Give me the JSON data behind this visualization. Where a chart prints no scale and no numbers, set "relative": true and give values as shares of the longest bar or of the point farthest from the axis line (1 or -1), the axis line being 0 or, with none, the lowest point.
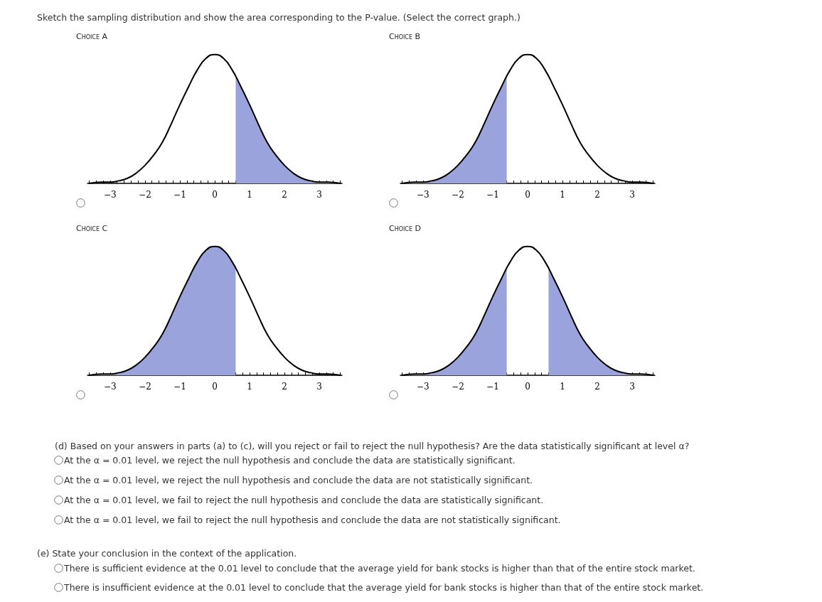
{
  "chart_data": [
    {
      "type": "line",
      "title": "Choice A",
      "relative": true,
      "marker": "none",
      "grid": false,
      "xlim": [
        -3.65,
        3.65
      ],
      "xticks": [
        {
          "value": -3.6,
          "label": null
        },
        {
          "value": -3.4,
          "label": null
        },
        {
          "value": -3.2,
          "label": null
        },
        {
          "value": -3,
          "label": "−3"
        },
        {
          "value": -2.8,
          "label": null
        },
        {
          "value": -2.6,
          "label": null
        },
        {
          "value": -2.4,
          "label": null
        },
        {
          "value": -2.2,
          "label": null
        },
        {
          "value": -2,
          "label": "−2"
        },
        {
          "value": -1.8,
          "label": null
        },
        {
          "value": -1.6,
          "label": null
        },
        {
          "value": -1.4,
          "label": null
        },
        {
          "value": -1.2,
          "label": null
        },
        {
          "value": -1,
          "label": "−1"
        },
        {
          "value": -0.8,
          "label": null
        },
        {
          "value": -0.6,
          "label": null
        },
        {
          "value": -0.4,
          "label": null
        },
        {
          "value": -0.2,
          "label": null
        },
        0,
        {
          "value": 0.2,
          "label": null
        },
        {
          "value": 0.4,
          "label": null
        },
        {
          "value": 0.6,
          "label": null
        },
        {
          "value": 0.8,
          "label": null
        },
        1,
        {
          "value": 1.2,
          "label": null
        },
        {
          "value": 1.4,
          "label": null
        },
        {
          "value": 1.6,
          "label": null
        },
        {
          "value": 1.8,
          "label": null
        },
        2,
        {
          "value": 2.2,
          "label": null
        },
        {
          "value": 2.4,
          "label": null
        },
        {
          "value": 2.6,
          "label": null
        },
        {
          "value": 2.8,
          "label": null
        },
        3,
        {
          "value": 3.2,
          "label": null
        },
        {
          "value": 3.4,
          "label": null
        },
        {
          "value": 3.6,
          "label": null
        }
      ],
      "series": [
        {
          "type": "area",
          "color": "#9aa3db",
          "x": [
            0.6,
            0.75,
            1,
            1.25,
            1.5,
            1.75,
            2,
            2.25,
            2.5,
            2.75,
            3,
            3.25,
            3.6
          ],
          "values": [
            0.84,
            0.75,
            0.61,
            0.46,
            0.32,
            0.22,
            0.14,
            0.08,
            0.04,
            0.02,
            0.01,
            0.01,
            0
          ]
        },
        {
          "type": "line",
          "color": "#000000",
          "x": [
            -3.6,
            -3.25,
            -3,
            -2.75,
            -2.5,
            -2.25,
            -2,
            -1.75,
            -1.5,
            -1.25,
            -1,
            -0.75,
            -0.5,
            -0.25,
            0,
            0.25,
            0.5,
            0.75,
            1,
            1.25,
            1.5,
            1.75,
            2,
            2.25,
            2.5,
            2.75,
            3,
            3.25,
            3.6
          ],
          "values": [
            0,
            0.01,
            0.01,
            0.02,
            0.04,
            0.08,
            0.14,
            0.22,
            0.32,
            0.46,
            0.61,
            0.75,
            0.88,
            0.97,
            1,
            0.97,
            0.88,
            0.75,
            0.61,
            0.46,
            0.32,
            0.22,
            0.14,
            0.08,
            0.04,
            0.02,
            0.01,
            0.01,
            0
          ]
        }
      ],
      "annotations": [
        "Sketch the sampling distribution and show the area corresponding to the P-value. (Select the correct graph.)"
      ]
    },
    {
      "type": "line",
      "title": "Choice B",
      "relative": true,
      "marker": "none",
      "grid": false,
      "xlim": [
        -3.65,
        3.65
      ],
      "xticks": [
        {
          "value": -3.6,
          "label": null
        },
        {
          "value": -3.4,
          "label": null
        },
        {
          "value": -3.2,
          "label": null
        },
        {
          "value": -3,
          "label": "−3"
        },
        {
          "value": -2.8,
          "label": null
        },
        {
          "value": -2.6,
          "label": null
        },
        {
          "value": -2.4,
          "label": null
        },
        {
          "value": -2.2,
          "label": null
        },
        {
          "value": -2,
          "label": "−2"
        },
        {
          "value": -1.8,
          "label": null
        },
        {
          "value": -1.6,
          "label": null
        },
        {
          "value": -1.4,
          "label": null
        },
        {
          "value": -1.2,
          "label": null
        },
        {
          "value": -1,
          "label": "−1"
        },
        {
          "value": -0.8,
          "label": null
        },
        {
          "value": -0.6,
          "label": null
        },
        {
          "value": -0.4,
          "label": null
        },
        {
          "value": -0.2,
          "label": null
        },
        0,
        {
          "value": 0.2,
          "label": null
        },
        {
          "value": 0.4,
          "label": null
        },
        {
          "value": 0.6,
          "label": null
        },
        {
          "value": 0.8,
          "label": null
        },
        1,
        {
          "value": 1.2,
          "label": null
        },
        {
          "value": 1.4,
          "label": null
        },
        {
          "value": 1.6,
          "label": null
        },
        {
          "value": 1.8,
          "label": null
        },
        2,
        {
          "value": 2.2,
          "label": null
        },
        {
          "value": 2.4,
          "label": null
        },
        {
          "value": 2.6,
          "label": null
        },
        {
          "value": 2.8,
          "label": null
        },
        3,
        {
          "value": 3.2,
          "label": null
        },
        {
          "value": 3.4,
          "label": null
        },
        {
          "value": 3.6,
          "label": null
        }
      ],
      "series": [
        {
          "type": "area",
          "color": "#9aa3db",
          "x": [
            -3.6,
            -3.25,
            -3,
            -2.75,
            -2.5,
            -2.25,
            -2,
            -1.75,
            -1.5,
            -1.25,
            -1,
            -0.75,
            -0.6
          ],
          "values": [
            0,
            0.01,
            0.01,
            0.02,
            0.04,
            0.08,
            0.14,
            0.22,
            0.32,
            0.46,
            0.61,
            0.75,
            0.84
          ]
        },
        {
          "type": "line",
          "color": "#000000",
          "x": [
            -3.6,
            -3.25,
            -3,
            -2.75,
            -2.5,
            -2.25,
            -2,
            -1.75,
            -1.5,
            -1.25,
            -1,
            -0.75,
            -0.5,
            -0.25,
            0,
            0.25,
            0.5,
            0.75,
            1,
            1.25,
            1.5,
            1.75,
            2,
            2.25,
            2.5,
            2.75,
            3,
            3.25,
            3.6
          ],
          "values": [
            0,
            0.01,
            0.01,
            0.02,
            0.04,
            0.08,
            0.14,
            0.22,
            0.32,
            0.46,
            0.61,
            0.75,
            0.88,
            0.97,
            1,
            0.97,
            0.88,
            0.75,
            0.61,
            0.46,
            0.32,
            0.22,
            0.14,
            0.08,
            0.04,
            0.02,
            0.01,
            0.01,
            0
          ]
        }
      ]
    },
    {
      "type": "line",
      "title": "Choice C",
      "relative": true,
      "marker": "none",
      "grid": false,
      "xlim": [
        -3.65,
        3.65
      ],
      "xticks": [
        {
          "value": -3.6,
          "label": null
        },
        {
          "value": -3.4,
          "label": null
        },
        {
          "value": -3.2,
          "label": null
        },
        {
          "value": -3,
          "label": "−3"
        },
        {
          "value": -2.8,
          "label": null
        },
        {
          "value": -2.6,
          "label": null
        },
        {
          "value": -2.4,
          "label": null
        },
        {
          "value": -2.2,
          "label": null
        },
        {
          "value": -2,
          "label": "−2"
        },
        {
          "value": -1.8,
          "label": null
        },
        {
          "value": -1.6,
          "label": null
        },
        {
          "value": -1.4,
          "label": null
        },
        {
          "value": -1.2,
          "label": null
        },
        {
          "value": -1,
          "label": "−1"
        },
        {
          "value": -0.8,
          "label": null
        },
        {
          "value": -0.6,
          "label": null
        },
        {
          "value": -0.4,
          "label": null
        },
        {
          "value": -0.2,
          "label": null
        },
        0,
        {
          "value": 0.2,
          "label": null
        },
        {
          "value": 0.4,
          "label": null
        },
        {
          "value": 0.6,
          "label": null
        },
        {
          "value": 0.8,
          "label": null
        },
        1,
        {
          "value": 1.2,
          "label": null
        },
        {
          "value": 1.4,
          "label": null
        },
        {
          "value": 1.6,
          "label": null
        },
        {
          "value": 1.8,
          "label": null
        },
        2,
        {
          "value": 2.2,
          "label": null
        },
        {
          "value": 2.4,
          "label": null
        },
        {
          "value": 2.6,
          "label": null
        },
        {
          "value": 2.8,
          "label": null
        },
        3,
        {
          "value": 3.2,
          "label": null
        },
        {
          "value": 3.4,
          "label": null
        },
        {
          "value": 3.6,
          "label": null
        }
      ],
      "series": [
        {
          "type": "area",
          "color": "#9aa3db",
          "x": [
            -3.6,
            -3.25,
            -3,
            -2.75,
            -2.5,
            -2.25,
            -2,
            -1.75,
            -1.5,
            -1.25,
            -1,
            -0.75,
            -0.5,
            -0.25,
            0,
            0.25,
            0.5,
            0.6
          ],
          "values": [
            0,
            0.01,
            0.01,
            0.02,
            0.04,
            0.08,
            0.14,
            0.22,
            0.32,
            0.46,
            0.61,
            0.75,
            0.88,
            0.97,
            1,
            0.97,
            0.88,
            0.84
          ]
        },
        {
          "type": "line",
          "color": "#000000",
          "x": [
            -3.6,
            -3.25,
            -3,
            -2.75,
            -2.5,
            -2.25,
            -2,
            -1.75,
            -1.5,
            -1.25,
            -1,
            -0.75,
            -0.5,
            -0.25,
            0,
            0.25,
            0.5,
            0.75,
            1,
            1.25,
            1.5,
            1.75,
            2,
            2.25,
            2.5,
            2.75,
            3,
            3.25,
            3.6
          ],
          "values": [
            0,
            0.01,
            0.01,
            0.02,
            0.04,
            0.08,
            0.14,
            0.22,
            0.32,
            0.46,
            0.61,
            0.75,
            0.88,
            0.97,
            1,
            0.97,
            0.88,
            0.75,
            0.61,
            0.46,
            0.32,
            0.22,
            0.14,
            0.08,
            0.04,
            0.02,
            0.01,
            0.01,
            0
          ]
        }
      ]
    },
    {
      "type": "line",
      "title": "Choice D",
      "relative": true,
      "marker": "none",
      "grid": false,
      "xlim": [
        -3.65,
        3.65
      ],
      "xticks": [
        {
          "value": -3.6,
          "label": null
        },
        {
          "value": -3.4,
          "label": null
        },
        {
          "value": -3.2,
          "label": null
        },
        {
          "value": -3,
          "label": "−3"
        },
        {
          "value": -2.8,
          "label": null
        },
        {
          "value": -2.6,
          "label": null
        },
        {
          "value": -2.4,
          "label": null
        },
        {
          "value": -2.2,
          "label": null
        },
        {
          "value": -2,
          "label": "−2"
        },
        {
          "value": -1.8,
          "label": null
        },
        {
          "value": -1.6,
          "label": null
        },
        {
          "value": -1.4,
          "label": null
        },
        {
          "value": -1.2,
          "label": null
        },
        {
          "value": -1,
          "label": "−1"
        },
        {
          "value": -0.8,
          "label": null
        },
        {
          "value": -0.6,
          "label": null
        },
        {
          "value": -0.4,
          "label": null
        },
        {
          "value": -0.2,
          "label": null
        },
        0,
        {
          "value": 0.2,
          "label": null
        },
        {
          "value": 0.4,
          "label": null
        },
        {
          "value": 0.6,
          "label": null
        },
        {
          "value": 0.8,
          "label": null
        },
        1,
        {
          "value": 1.2,
          "label": null
        },
        {
          "value": 1.4,
          "label": null
        },
        {
          "value": 1.6,
          "label": null
        },
        {
          "value": 1.8,
          "label": null
        },
        2,
        {
          "value": 2.2,
          "label": null
        },
        {
          "value": 2.4,
          "label": null
        },
        {
          "value": 2.6,
          "label": null
        },
        {
          "value": 2.8,
          "label": null
        },
        3,
        {
          "value": 3.2,
          "label": null
        },
        {
          "value": 3.4,
          "label": null
        },
        {
          "value": 3.6,
          "label": null
        }
      ],
      "series": [
        {
          "type": "area",
          "color": "#9aa3db",
          "x": [
            -3.6,
            -3.25,
            -3,
            -2.75,
            -2.5,
            -2.25,
            -2,
            -1.75,
            -1.5,
            -1.25,
            -1,
            -0.75,
            -0.6
          ],
          "values": [
            0,
            0.01,
            0.01,
            0.02,
            0.04,
            0.08,
            0.14,
            0.22,
            0.32,
            0.46,
            0.61,
            0.75,
            0.84
          ]
        },
        {
          "type": "area",
          "color": "#9aa3db",
          "x": [
            0.6,
            0.75,
            1,
            1.25,
            1.5,
            1.75,
            2,
            2.25,
            2.5,
            2.75,
            3,
            3.25,
            3.6
          ],
          "values": [
            0.84,
            0.75,
            0.61,
            0.46,
            0.32,
            0.22,
            0.14,
            0.08,
            0.04,
            0.02,
            0.01,
            0.01,
            0
          ]
        },
        {
          "type": "line",
          "color": "#000000",
          "x": [
            -3.6,
            -3.25,
            -3,
            -2.75,
            -2.5,
            -2.25,
            -2,
            -1.75,
            -1.5,
            -1.25,
            -1,
            -0.75,
            -0.5,
            -0.25,
            0,
            0.25,
            0.5,
            0.75,
            1,
            1.25,
            1.5,
            1.75,
            2,
            2.25,
            2.5,
            2.75,
            3,
            3.25,
            3.6
          ],
          "values": [
            0,
            0.01,
            0.01,
            0.02,
            0.04,
            0.08,
            0.14,
            0.22,
            0.32,
            0.46,
            0.61,
            0.75,
            0.88,
            0.97,
            1,
            0.97,
            0.88,
            0.75,
            0.61,
            0.46,
            0.32,
            0.22,
            0.14,
            0.08,
            0.04,
            0.02,
            0.01,
            0.01,
            0
          ]
        }
      ],
      "annotations": [
        "(d) Based on your answers in parts (a) to (c), will you reject or fail to reject the null hypothesis? Are the data statistically significant at level α?",
        "At the α = 0.01 level, we reject the null hypothesis and conclude the data are statistically significant.",
        "At the α = 0.01 level, we reject the null hypothesis and conclude the data are not statistically significant.",
        "At the α = 0.01 level, we fail to reject the null hypothesis and conclude the data are statistically significant.",
        "At the α = 0.01 level, we fail to reject the null hypothesis and conclude the data are not statistically significant.",
        "(e) State your conclusion in the context of the application.",
        "There is sufficient evidence at the 0.01 level to conclude that the average yield for bank stocks is higher than that of the entire stock market.",
        "There is insufficient evidence at the 0.01 level to conclude that the average yield for bank stocks is higher than that of the entire stock market."
      ]
    }
  ]
}
